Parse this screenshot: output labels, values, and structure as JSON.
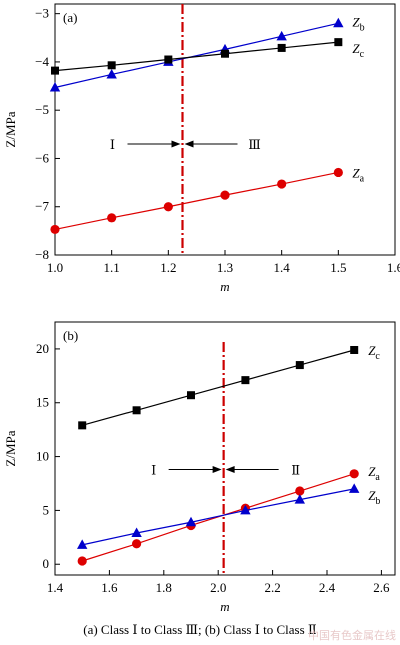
{
  "chart_data": [
    {
      "type": "line",
      "panel_label": "(a)",
      "xlabel": "m",
      "ylabel": "Z/MPa",
      "xlim": [
        1.0,
        1.6
      ],
      "ylim": [
        -8,
        -2.8
      ],
      "xticks": [
        "1.0",
        "1.1",
        "1.2",
        "1.3",
        "1.4",
        "1.5",
        "1.6"
      ],
      "yticks": [
        "-3",
        "-4",
        "-5",
        "-6",
        "-7",
        "-8"
      ],
      "series": [
        {
          "name": "Zb",
          "marker": "triangle",
          "color": "#0000cc",
          "x": [
            1.0,
            1.1,
            1.2,
            1.3,
            1.4,
            1.5
          ],
          "y": [
            -4.53,
            -4.26,
            -4.0,
            -3.74,
            -3.47,
            -3.2
          ]
        },
        {
          "name": "Zc",
          "marker": "square",
          "color": "#000000",
          "x": [
            1.0,
            1.1,
            1.2,
            1.3,
            1.4,
            1.5
          ],
          "y": [
            -4.18,
            -4.07,
            -3.95,
            -3.83,
            -3.71,
            -3.59
          ]
        },
        {
          "name": "Za",
          "marker": "circle",
          "color": "#dd0000",
          "x": [
            1.0,
            1.1,
            1.2,
            1.3,
            1.4,
            1.5
          ],
          "y": [
            -7.47,
            -7.23,
            -7.0,
            -6.76,
            -6.53,
            -6.29
          ]
        }
      ],
      "boundary_x": 1.225,
      "boundary_color": "#cc0000",
      "region_left": "Ⅰ",
      "region_right": "Ⅲ",
      "region_y": -5.7
    },
    {
      "type": "line",
      "panel_label": "(b)",
      "xlabel": "m",
      "ylabel": "Z/MPa",
      "xlim": [
        1.4,
        2.65
      ],
      "ylim": [
        -1,
        22.5
      ],
      "xticks": [
        "1.4",
        "1.6",
        "1.8",
        "2.0",
        "2.2",
        "2.4",
        "2.6"
      ],
      "yticks": [
        "0",
        "5",
        "10",
        "15",
        "20"
      ],
      "series": [
        {
          "name": "Zc",
          "marker": "square",
          "color": "#000000",
          "x": [
            1.5,
            1.7,
            1.9,
            2.1,
            2.3,
            2.5
          ],
          "y": [
            12.9,
            14.3,
            15.7,
            17.1,
            18.5,
            19.9
          ]
        },
        {
          "name": "Za",
          "marker": "circle",
          "color": "#dd0000",
          "x": [
            1.5,
            1.7,
            1.9,
            2.1,
            2.3,
            2.5
          ],
          "y": [
            0.3,
            1.9,
            3.6,
            5.2,
            6.8,
            8.4
          ]
        },
        {
          "name": "Zb",
          "marker": "triangle",
          "color": "#0000cc",
          "x": [
            1.5,
            1.7,
            1.9,
            2.1,
            2.3,
            2.5
          ],
          "y": [
            1.8,
            2.9,
            3.9,
            5.0,
            6.0,
            7.0
          ]
        }
      ],
      "boundary_x": 2.02,
      "boundary_color": "#cc0000",
      "region_left": "Ⅰ",
      "region_right": "Ⅱ",
      "region_y": 8.8
    }
  ],
  "caption": "(a) Class Ⅰ to Class Ⅲ; (b) Class Ⅰ to Class Ⅱ",
  "watermark": "中国有色金属在线"
}
